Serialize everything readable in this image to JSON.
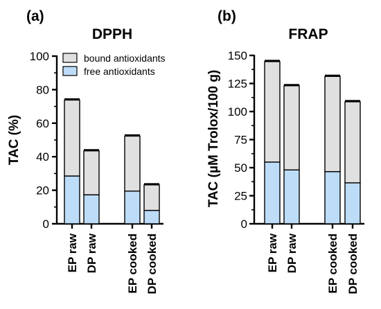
{
  "panels": [
    {
      "letter": "(a)",
      "chart_data": {
        "type": "bar",
        "stacked": true,
        "title": "DPPH",
        "xlabel": "",
        "ylabel": "TAC (%)",
        "ylim": [
          0,
          100
        ],
        "yticks": [
          0,
          20,
          40,
          60,
          80,
          100
        ],
        "categories": [
          "EP raw",
          "DP raw",
          "EP cooked",
          "DP cooked"
        ],
        "series": [
          {
            "name": "free antioxidants",
            "color": "#bddcf8",
            "values": [
              28.5,
              17.3,
              19.5,
              8.0
            ]
          },
          {
            "name": "bound antioxidants",
            "color": "#e0e0e0",
            "values": [
              45.3,
              26.2,
              32.8,
              15.2
            ]
          }
        ],
        "legend": "top-right",
        "grid": false
      }
    },
    {
      "letter": "(b)",
      "chart_data": {
        "type": "bar",
        "stacked": true,
        "title": "FRAP",
        "xlabel": "",
        "ylabel": "TAC (µM Trolox/100 g)",
        "ylim": [
          0,
          150
        ],
        "yticks": [
          0,
          25,
          50,
          75,
          100,
          125,
          150
        ],
        "categories": [
          "EP raw",
          "DP raw",
          "EP cooked",
          "DP cooked"
        ],
        "series": [
          {
            "name": "free antioxidants",
            "color": "#bddcf8",
            "values": [
              55.0,
              48.0,
              46.5,
              36.5
            ]
          },
          {
            "name": "bound antioxidants",
            "color": "#e0e0e0",
            "values": [
              89.5,
              75.0,
              84.8,
              72.2
            ]
          }
        ],
        "legend": "none",
        "grid": false
      }
    }
  ]
}
